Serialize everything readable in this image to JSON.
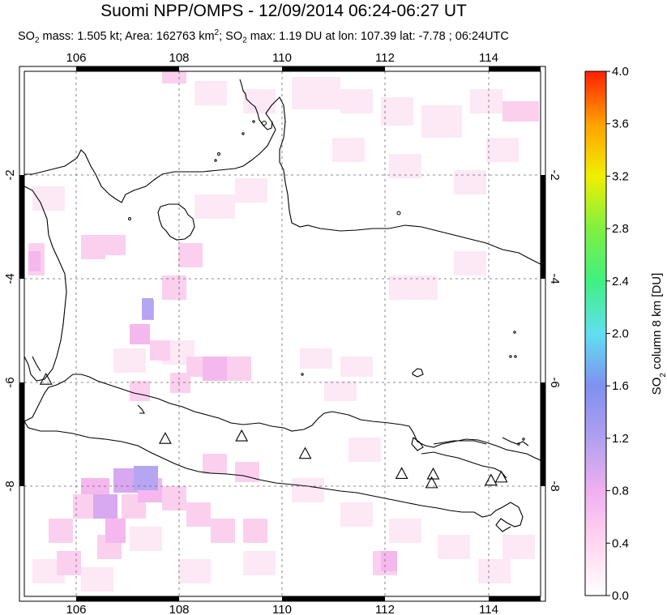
{
  "header": {
    "title": "Suomi NPP/OMPS - 12/09/2014 06:24-06:27 UT",
    "stats_prefix": "SO",
    "stats_sub": "2",
    "stats_mass": " mass: 1.505 kt; Area: 162763 km",
    "stats_sup": "2",
    "stats_rest": "; SO",
    "stats_sub2": "2",
    "stats_tail": " max: 1.19 DU at lon: 107.39 lat: -7.78 ; 06:24UTC"
  },
  "map": {
    "lon_range": [
      105,
      115
    ],
    "lat_range": [
      -10.3,
      -0.1
    ],
    "lon_ticks": [
      "106",
      "108",
      "110",
      "112",
      "114"
    ],
    "lat_ticks": [
      "-2",
      "-4",
      "-6",
      "-8"
    ],
    "grid": true,
    "volcano_marker": "triangle-icon",
    "volcanoes": [
      {
        "lon": 105.42,
        "lat": -6.1
      },
      {
        "lon": 107.73,
        "lat": -7.25
      },
      {
        "lon": 109.21,
        "lat": -7.2
      },
      {
        "lon": 110.44,
        "lat": -7.54
      },
      {
        "lon": 112.31,
        "lat": -7.93
      },
      {
        "lon": 112.92,
        "lat": -7.94
      },
      {
        "lon": 112.89,
        "lat": -8.11
      },
      {
        "lon": 114.04,
        "lat": -8.06
      },
      {
        "lon": 114.24,
        "lat": -8.0
      }
    ]
  },
  "colorbar": {
    "ticks": [
      "0.0",
      "0.4",
      "0.8",
      "1.2",
      "1.6",
      "2.0",
      "2.4",
      "2.8",
      "3.2",
      "3.6",
      "4.0"
    ],
    "label_prefix": "SO",
    "label_sub": "2",
    "label_rest": " column 8 km [DU]",
    "colors": [
      "#ffffff",
      "#ffd6f0",
      "#f0b0f0",
      "#b0a0f0",
      "#8090f0",
      "#60e0f0",
      "#40f080",
      "#80f040",
      "#f0f000",
      "#ffa000",
      "#ff2000"
    ]
  }
}
